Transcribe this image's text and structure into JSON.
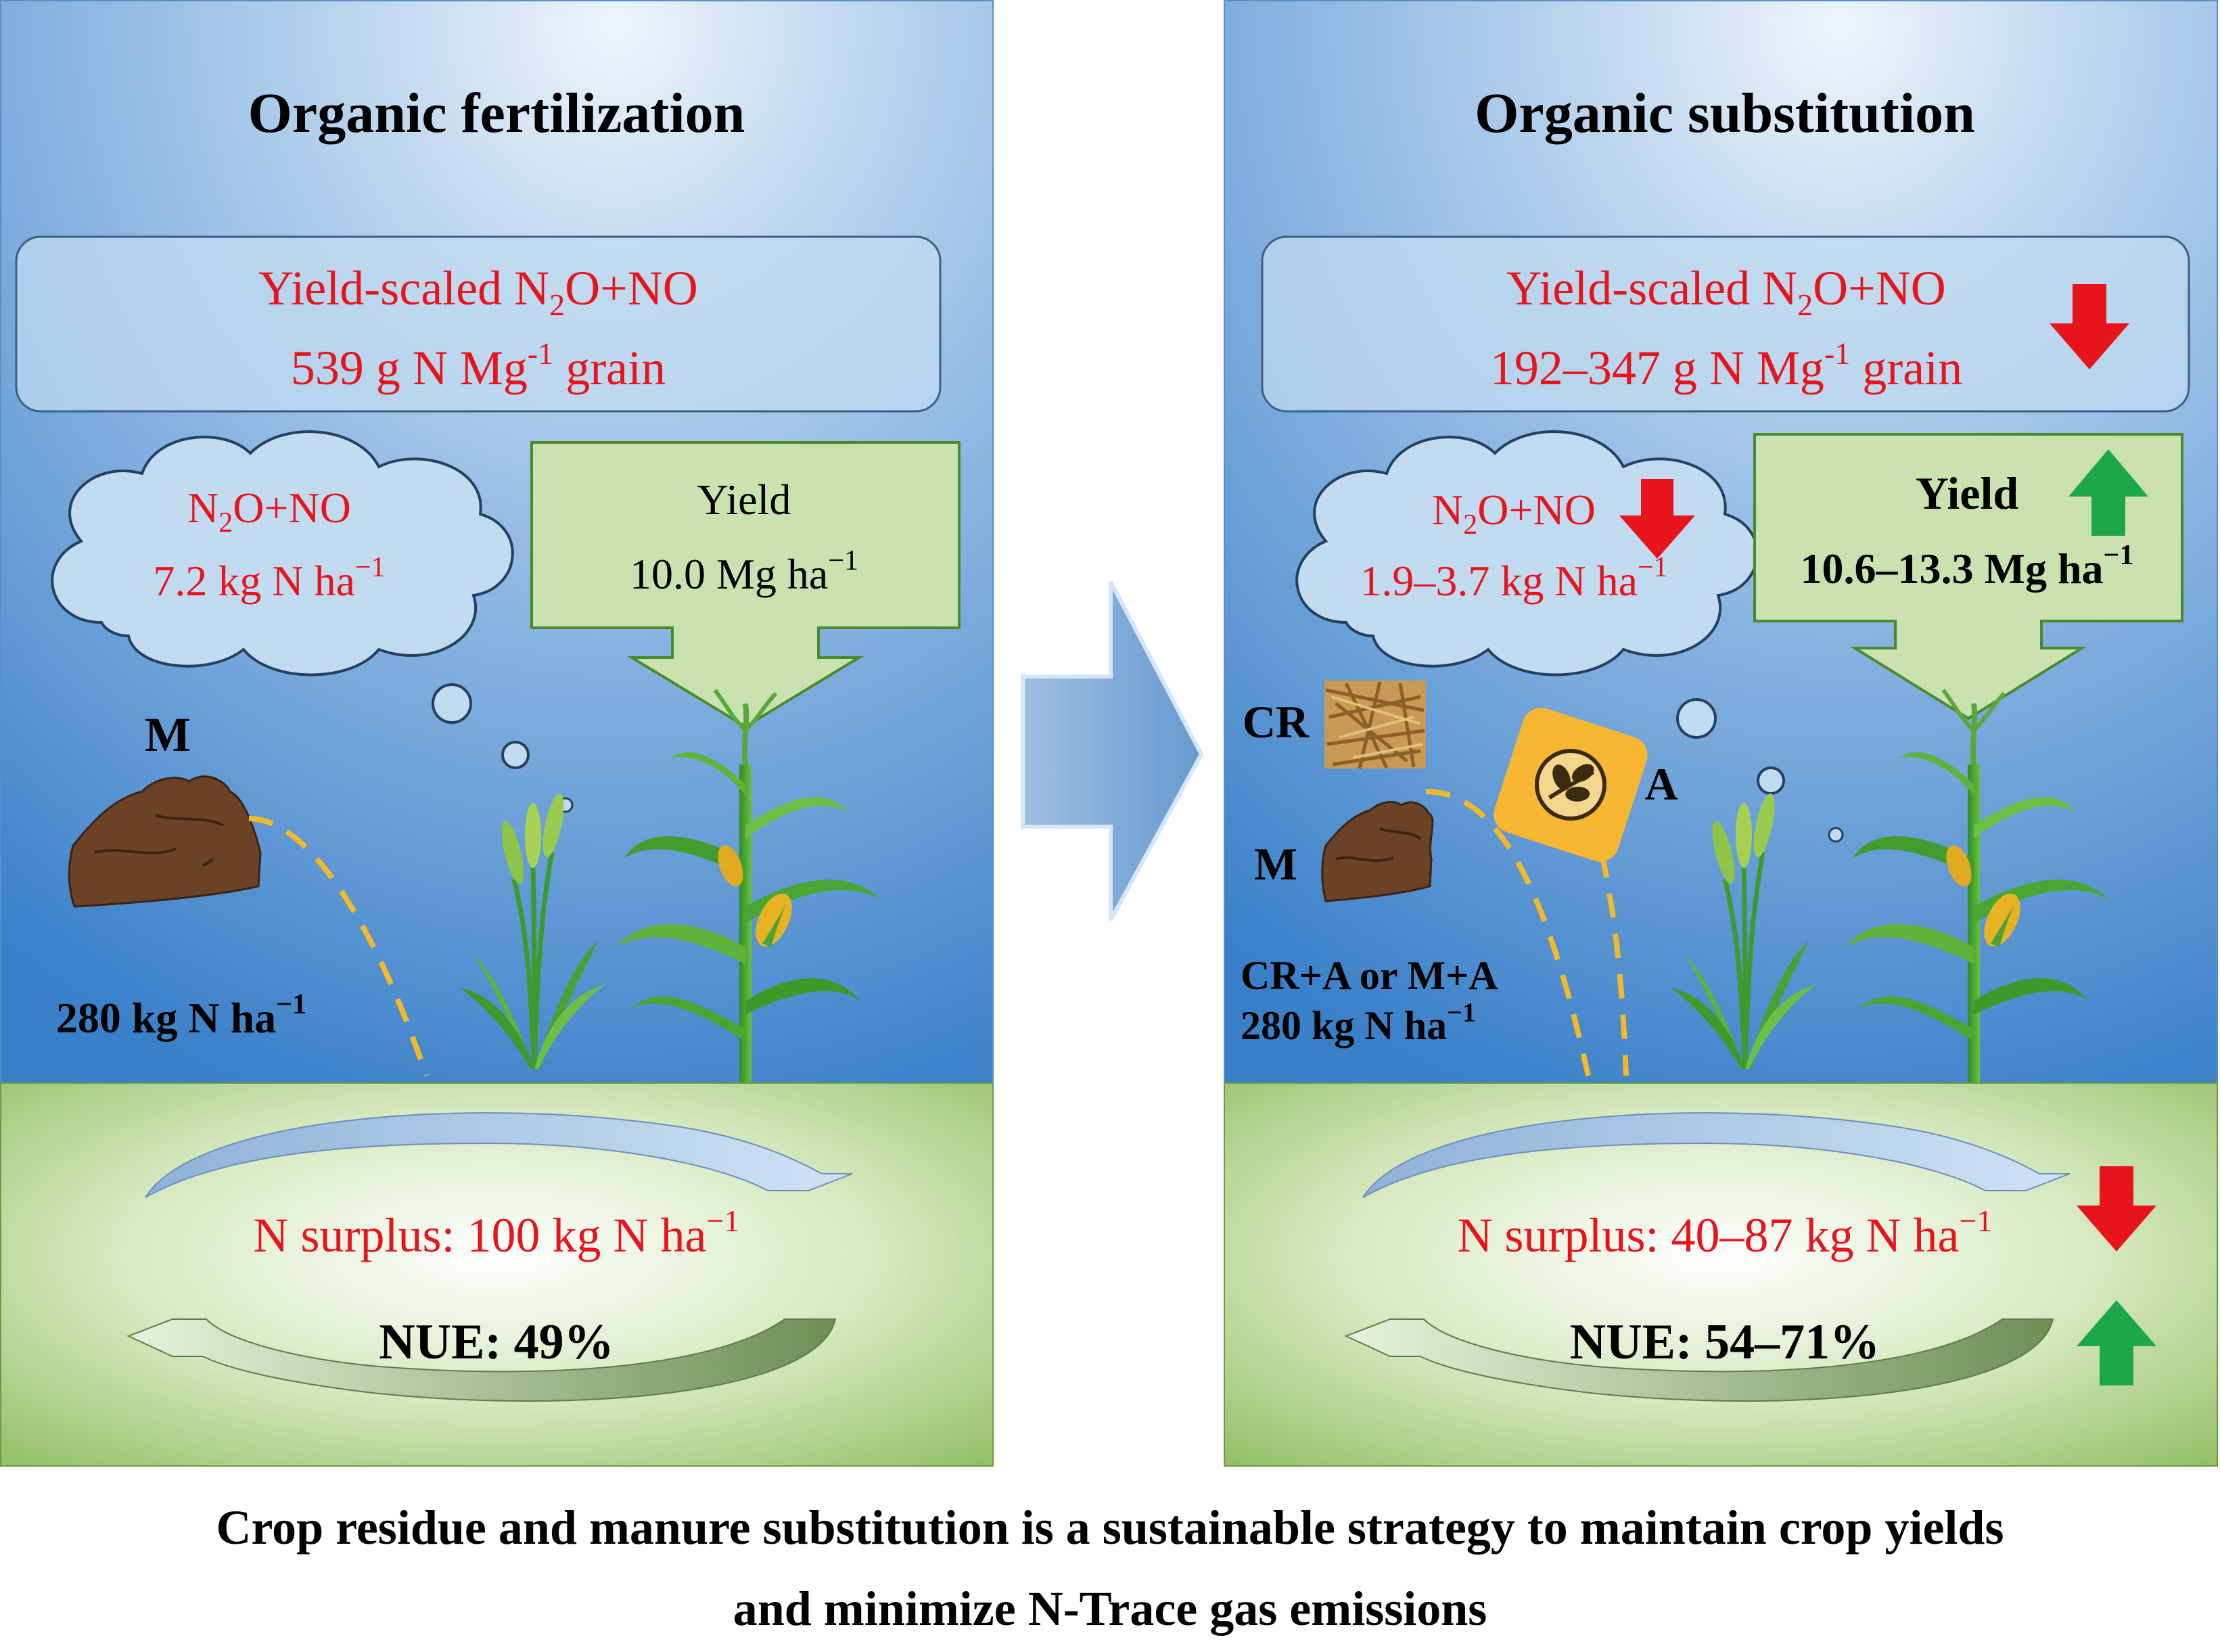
{
  "panels": {
    "left": {
      "title": "Organic fertilization",
      "box": {
        "line1_pre": "Yield-scaled N",
        "line1_sub": "2",
        "line1_post": "O+NO",
        "line2_pre": "539 g N Mg",
        "line2_sup": "-1",
        "line2_post": " grain"
      },
      "cloud": {
        "line1_pre": "N",
        "line1_sub": "2",
        "line1_post": "O+NO",
        "line2_pre": "7.2 kg N ha",
        "line2_sup": "−1"
      },
      "yield": {
        "label": "Yield",
        "value_pre": "10.0 Mg ha",
        "value_sup": "−1"
      },
      "manure_label": "M",
      "rate_pre": "280 kg N ha",
      "rate_sup": "−1",
      "surplus_pre": "N surplus: 100 kg N ha",
      "surplus_sup": "−1",
      "nue": "NUE: 49%"
    },
    "right": {
      "title": "Organic substitution",
      "box": {
        "line1_pre": "Yield-scaled N",
        "line1_sub": "2",
        "line1_post": "O+NO",
        "line2_pre": "192–347 g N Mg",
        "line2_sup": "-1",
        "line2_post": " grain"
      },
      "cloud": {
        "line1_pre": "N",
        "line1_sub": "2",
        "line1_post": "O+NO",
        "line2_pre": "1.9–3.7 kg N ha",
        "line2_sup": "−1"
      },
      "yield": {
        "label": "Yield",
        "value_pre": "10.6–13.3 Mg ha",
        "value_sup": "−1"
      },
      "cr_label": "CR",
      "manure_label": "M",
      "a_label": "A",
      "combo_label": "CR+A or M+A",
      "rate_pre": "280 kg N ha",
      "rate_sup": "−1",
      "surplus_pre": "N surplus: 40–87 kg N ha",
      "surplus_sup": "−1",
      "nue": "NUE: 54–71%"
    }
  },
  "caption": {
    "line1": "Crop residue and manure substitution is a sustainable strategy to maintain crop yields",
    "line2": "and minimize N-Trace gas emissions"
  },
  "colors": {
    "red_text": "#e8141b",
    "down_arrow": "#e8141b",
    "up_arrow": "#1ea64a",
    "sky_top": "#dbeaf7",
    "sky_bottom": "#3d86cc",
    "soil_green": "#8fbf5a",
    "yield_box": "#c9e2b0"
  },
  "icons": [
    "manure-icon",
    "crop-residue-icon",
    "additive-icon",
    "wheat-icon",
    "maize-icon",
    "cloud-icon",
    "process-arrow-icon",
    "down-arrow-icon",
    "up-arrow-icon"
  ]
}
